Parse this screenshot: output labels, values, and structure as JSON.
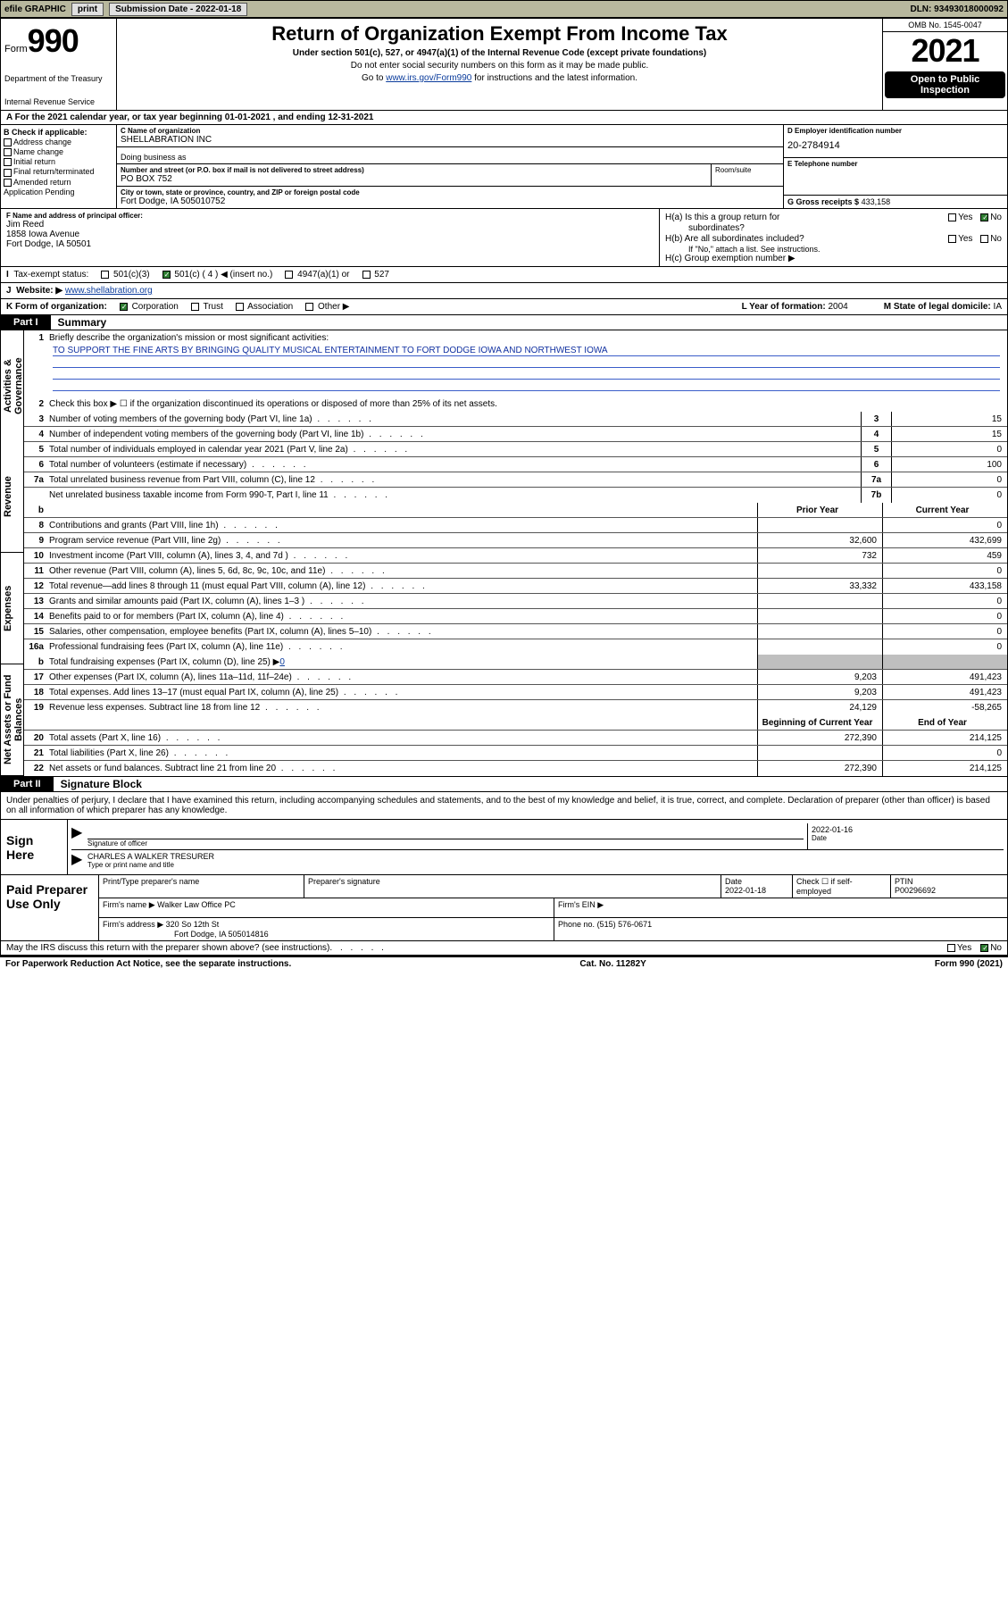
{
  "topbar": {
    "efile": "efile GRAPHIC",
    "print": "print",
    "subdate_label": "Submission Date - 2022-01-18",
    "dln": "DLN: 93493018000092"
  },
  "header": {
    "form_word": "Form",
    "form_num": "990",
    "dept": "Department of the Treasury",
    "irs": "Internal Revenue Service",
    "title": "Return of Organization Exempt From Income Tax",
    "subtitle": "Under section 501(c), 527, or 4947(a)(1) of the Internal Revenue Code (except private foundations)",
    "note1": "Do not enter social security numbers on this form as it may be made public.",
    "note2_pre": "Go to ",
    "note2_link": "www.irs.gov/Form990",
    "note2_post": " for instructions and the latest information.",
    "omb": "OMB No. 1545-0047",
    "year": "2021",
    "public1": "Open to Public",
    "public2": "Inspection"
  },
  "rowA": "For the 2021 calendar year, or tax year beginning 01-01-2021   , and ending 12-31-2021",
  "colB": {
    "hdr": "B Check if applicable:",
    "opts": [
      "Address change",
      "Name change",
      "Initial return",
      "Final return/terminated",
      "Amended return",
      "Application Pending"
    ]
  },
  "colC": {
    "name_label": "C Name of organization",
    "name": "SHELLABRATION INC",
    "dba_label": "Doing business as",
    "addr_label": "Number and street (or P.O. box if mail is not delivered to street address)",
    "addr": "PO BOX 752",
    "room_label": "Room/suite",
    "city_label": "City or town, state or province, country, and ZIP or foreign postal code",
    "city": "Fort Dodge, IA  505010752"
  },
  "colD": {
    "label": "D Employer identification number",
    "ein": "20-2784914"
  },
  "colE": {
    "label": "E Telephone number"
  },
  "colG": {
    "label": "G Gross receipts $",
    "val": "433,158"
  },
  "rowF": {
    "label": "F  Name and address of principal officer:",
    "name": "Jim Reed",
    "addr1": "1858 Iowa Avenue",
    "addr2": "Fort Dodge, IA  50501"
  },
  "rowH": {
    "a": "H(a)  Is this a group return for",
    "a2": "subordinates?",
    "b": "H(b)  Are all subordinates included?",
    "ifno": "If \"No,\" attach a list. See instructions.",
    "c": "H(c)  Group exemption number ▶",
    "yes": "Yes",
    "no": "No"
  },
  "rowI": {
    "label": "Tax-exempt status:",
    "opt1": "501(c)(3)",
    "opt2a": "501(c) ( 4 ) ◀ (insert no.)",
    "opt3": "4947(a)(1) or",
    "opt4": "527"
  },
  "rowJ": {
    "label": "Website: ▶",
    "url": "www.shellabration.org"
  },
  "rowK": {
    "label": "K Form of organization:",
    "opts": [
      "Corporation",
      "Trust",
      "Association",
      "Other ▶"
    ],
    "lyear_label": "L Year of formation:",
    "lyear": "2004",
    "mstate_label": "M State of legal domicile:",
    "mstate": "IA"
  },
  "part1": {
    "tag": "Part I",
    "title": "Summary"
  },
  "vtabs": [
    "Activities & Governance",
    "Revenue",
    "Expenses",
    "Net Assets or Fund Balances"
  ],
  "summary": {
    "l1_label": "Briefly describe the organization's mission or most significant activities:",
    "l1_text": "TO SUPPORT THE FINE ARTS BY BRINGING QUALITY MUSICAL ENTERTAINMENT TO FORT DODGE IOWA AND NORTHWEST IOWA",
    "l2": "Check this box ▶ ☐  if the organization discontinued its operations or disposed of more than 25% of its net assets.",
    "lines_small": [
      {
        "n": "3",
        "t": "Number of voting members of the governing body (Part VI, line 1a)",
        "box": "3",
        "v": "15"
      },
      {
        "n": "4",
        "t": "Number of independent voting members of the governing body (Part VI, line 1b)",
        "box": "4",
        "v": "15"
      },
      {
        "n": "5",
        "t": "Total number of individuals employed in calendar year 2021 (Part V, line 2a)",
        "box": "5",
        "v": "0"
      },
      {
        "n": "6",
        "t": "Total number of volunteers (estimate if necessary)",
        "box": "6",
        "v": "100"
      },
      {
        "n": "7a",
        "t": "Total unrelated business revenue from Part VIII, column (C), line 12",
        "box": "7a",
        "v": "0"
      },
      {
        "n": "",
        "t": "Net unrelated business taxable income from Form 990-T, Part I, line 11",
        "box": "7b",
        "v": "0"
      }
    ],
    "col_hdr_b": "b",
    "col_prior": "Prior Year",
    "col_cur": "Current Year",
    "lines_big": [
      {
        "n": "8",
        "t": "Contributions and grants (Part VIII, line 1h)",
        "p": "",
        "c": "0"
      },
      {
        "n": "9",
        "t": "Program service revenue (Part VIII, line 2g)",
        "p": "32,600",
        "c": "432,699"
      },
      {
        "n": "10",
        "t": "Investment income (Part VIII, column (A), lines 3, 4, and 7d )",
        "p": "732",
        "c": "459"
      },
      {
        "n": "11",
        "t": "Other revenue (Part VIII, column (A), lines 5, 6d, 8c, 9c, 10c, and 11e)",
        "p": "",
        "c": "0"
      },
      {
        "n": "12",
        "t": "Total revenue—add lines 8 through 11 (must equal Part VIII, column (A), line 12)",
        "p": "33,332",
        "c": "433,158"
      },
      {
        "n": "13",
        "t": "Grants and similar amounts paid (Part IX, column (A), lines 1–3 )",
        "p": "",
        "c": "0"
      },
      {
        "n": "14",
        "t": "Benefits paid to or for members (Part IX, column (A), line 4)",
        "p": "",
        "c": "0"
      },
      {
        "n": "15",
        "t": "Salaries, other compensation, employee benefits (Part IX, column (A), lines 5–10)",
        "p": "",
        "c": "0"
      },
      {
        "n": "16a",
        "t": "Professional fundraising fees (Part IX, column (A), line 11e)",
        "p": "",
        "c": "0"
      }
    ],
    "l16b_pre": "Total fundraising expenses (Part IX, column (D), line 25) ▶",
    "l16b_link": "0",
    "lines_big2": [
      {
        "n": "17",
        "t": "Other expenses (Part IX, column (A), lines 11a–11d, 11f–24e)",
        "p": "9,203",
        "c": "491,423"
      },
      {
        "n": "18",
        "t": "Total expenses. Add lines 13–17 (must equal Part IX, column (A), line 25)",
        "p": "9,203",
        "c": "491,423"
      },
      {
        "n": "19",
        "t": "Revenue less expenses. Subtract line 18 from line 12",
        "p": "24,129",
        "c": "-58,265"
      }
    ],
    "col_beg": "Beginning of Current Year",
    "col_end": "End of Year",
    "lines_net": [
      {
        "n": "20",
        "t": "Total assets (Part X, line 16)",
        "p": "272,390",
        "c": "214,125"
      },
      {
        "n": "21",
        "t": "Total liabilities (Part X, line 26)",
        "p": "",
        "c": "0"
      },
      {
        "n": "22",
        "t": "Net assets or fund balances. Subtract line 21 from line 20",
        "p": "272,390",
        "c": "214,125"
      }
    ]
  },
  "part2": {
    "tag": "Part II",
    "title": "Signature Block"
  },
  "sig_intro": "Under penalties of perjury, I declare that I have examined this return, including accompanying schedules and statements, and to the best of my knowledge and belief, it is true, correct, and complete. Declaration of preparer (other than officer) is based on all information of which preparer has any knowledge.",
  "sign": {
    "here": "Sign Here",
    "sig_label": "Signature of officer",
    "date_label": "Date",
    "date": "2022-01-16",
    "name": "CHARLES A WALKER  TRESURER",
    "name_label": "Type or print name and title"
  },
  "prep": {
    "left": "Paid Preparer Use Only",
    "h_name": "Print/Type preparer's name",
    "h_sig": "Preparer's signature",
    "h_date": "Date",
    "date": "2022-01-18",
    "check_label": "Check ☐ if self-employed",
    "ptin_label": "PTIN",
    "ptin": "P00296692",
    "firm_label": "Firm's name    ▶",
    "firm": "Walker Law Office PC",
    "ein_label": "Firm's EIN ▶",
    "addr_label": "Firm's address ▶",
    "addr1": "320 So 12th St",
    "addr2": "Fort Dodge, IA  505014816",
    "phone_label": "Phone no.",
    "phone": "(515) 576-0671"
  },
  "bottom": {
    "q": "May the IRS discuss this return with the preparer shown above? (see instructions)",
    "yes": "Yes",
    "no": "No"
  },
  "footer": {
    "left": "For Paperwork Reduction Act Notice, see the separate instructions.",
    "mid": "Cat. No. 11282Y",
    "right": "Form 990 (2021)"
  }
}
